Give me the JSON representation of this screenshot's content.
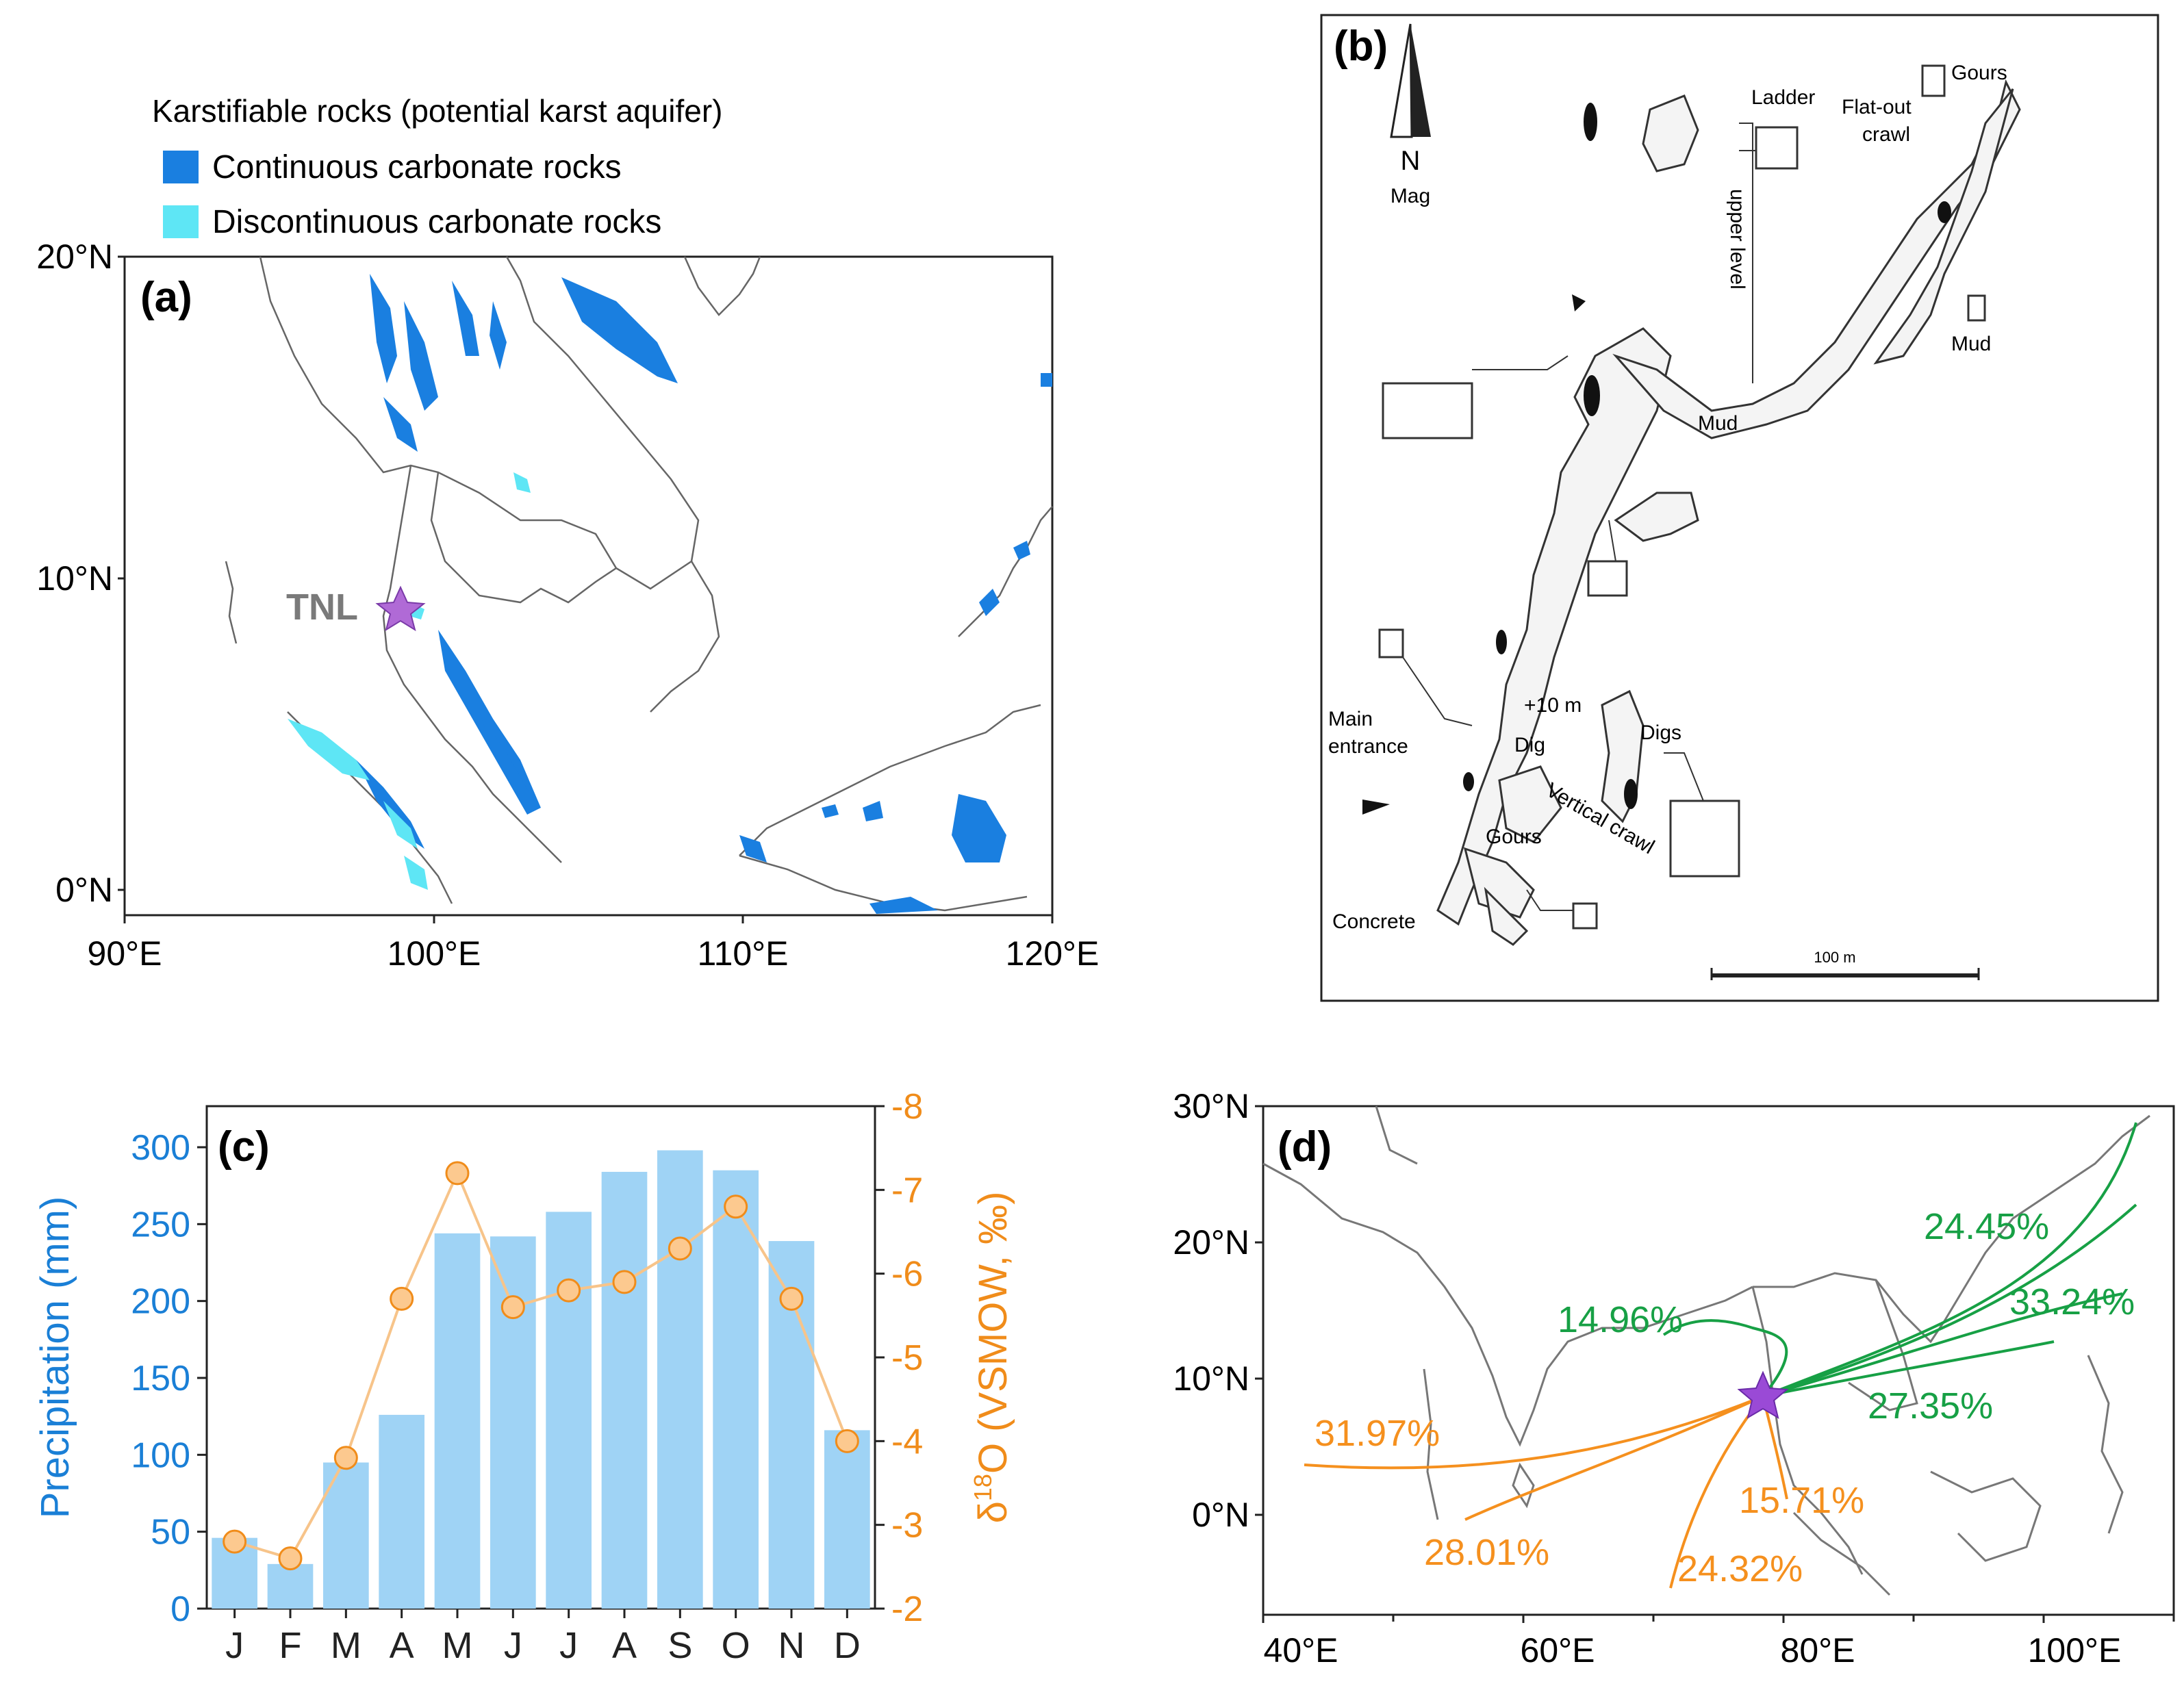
{
  "panel_a": {
    "legend_title": "Karstifiable rocks (potential karst aquifer)",
    "legend_continuous": "Continuous carbonate rocks",
    "legend_discontinuous": "Discontinuous carbonate rocks",
    "color_continuous": "#1a7fe0",
    "color_discontinuous": "#5ee6f5",
    "panel_label": "(a)",
    "site_label": "TNL",
    "y_ticks": [
      "20°N",
      "10°N",
      "0°N"
    ],
    "x_ticks": [
      "90°E",
      "100°E",
      "110°E",
      "120°E"
    ]
  },
  "panel_b": {
    "panel_label": "(b)",
    "north": "N",
    "mag": "Mag",
    "labels": {
      "ladder": "Ladder",
      "gours_top": "Gours",
      "flat_out": "Flat-out",
      "crawl": "crawl",
      "upper_level": "upper level",
      "mud_right": "Mud",
      "mud_center": "Mud",
      "main": "Main",
      "entrance": "entrance",
      "plus10": "+10 m",
      "dig": "Dig",
      "digs": "Digs",
      "vertical_crawl": "Vertical crawl",
      "gours_bottom": "Gours",
      "concrete": "Concrete",
      "scale": "100 m"
    }
  },
  "panel_c": {
    "panel_label": "(c)",
    "ylabel_left": "Precipitation (mm)",
    "ylabel_right_prefix": "δ",
    "ylabel_right_sup": "18",
    "ylabel_right_suffix": "O (VSMOW, ‰)",
    "color_bars": "#9fd3f5",
    "color_left_axis": "#1a7fd6",
    "color_right_axis": "#f08c1a",
    "left_ticks": [
      "0",
      "50",
      "100",
      "150",
      "200",
      "250",
      "300"
    ],
    "right_ticks": [
      "-2",
      "-3",
      "-4",
      "-5",
      "-6",
      "-7",
      "-8"
    ]
  },
  "panel_d": {
    "panel_label": "(d)",
    "y_ticks": [
      "30°N",
      "20°N",
      "10°N",
      "0°N"
    ],
    "x_ticks": [
      "40°E",
      "60°E",
      "80°E",
      "100°E"
    ],
    "color_green": "#17a045",
    "color_orange": "#f5901e",
    "green_labels": [
      "24.45%",
      "33.24%",
      "14.96%",
      "27.35%"
    ],
    "orange_labels": [
      "31.97%",
      "15.71%",
      "28.01%",
      "24.32%"
    ]
  },
  "chart_data": {
    "type": "bar",
    "title": "",
    "categories": [
      "J",
      "F",
      "M",
      "A",
      "M",
      "J",
      "J",
      "A",
      "S",
      "O",
      "N",
      "D"
    ],
    "xlabel": "",
    "ylabel": "Precipitation (mm)",
    "ylim": [
      0,
      300
    ],
    "series": [
      {
        "name": "Precipitation (mm)",
        "type": "bar",
        "axis": "left",
        "values": [
          46,
          29,
          95,
          126,
          244,
          242,
          258,
          284,
          298,
          285,
          239,
          116
        ]
      },
      {
        "name": "δ18O (VSMOW, ‰)",
        "type": "line",
        "axis": "right",
        "inverted": true,
        "values": [
          -2.8,
          -2.6,
          -3.8,
          -5.7,
          -7.2,
          -5.6,
          -5.8,
          -5.9,
          -6.3,
          -6.8,
          -5.7,
          -4.0
        ]
      }
    ],
    "y2label": "δ18O (VSMOW, ‰)",
    "y2lim": [
      -2,
      -8
    ]
  }
}
